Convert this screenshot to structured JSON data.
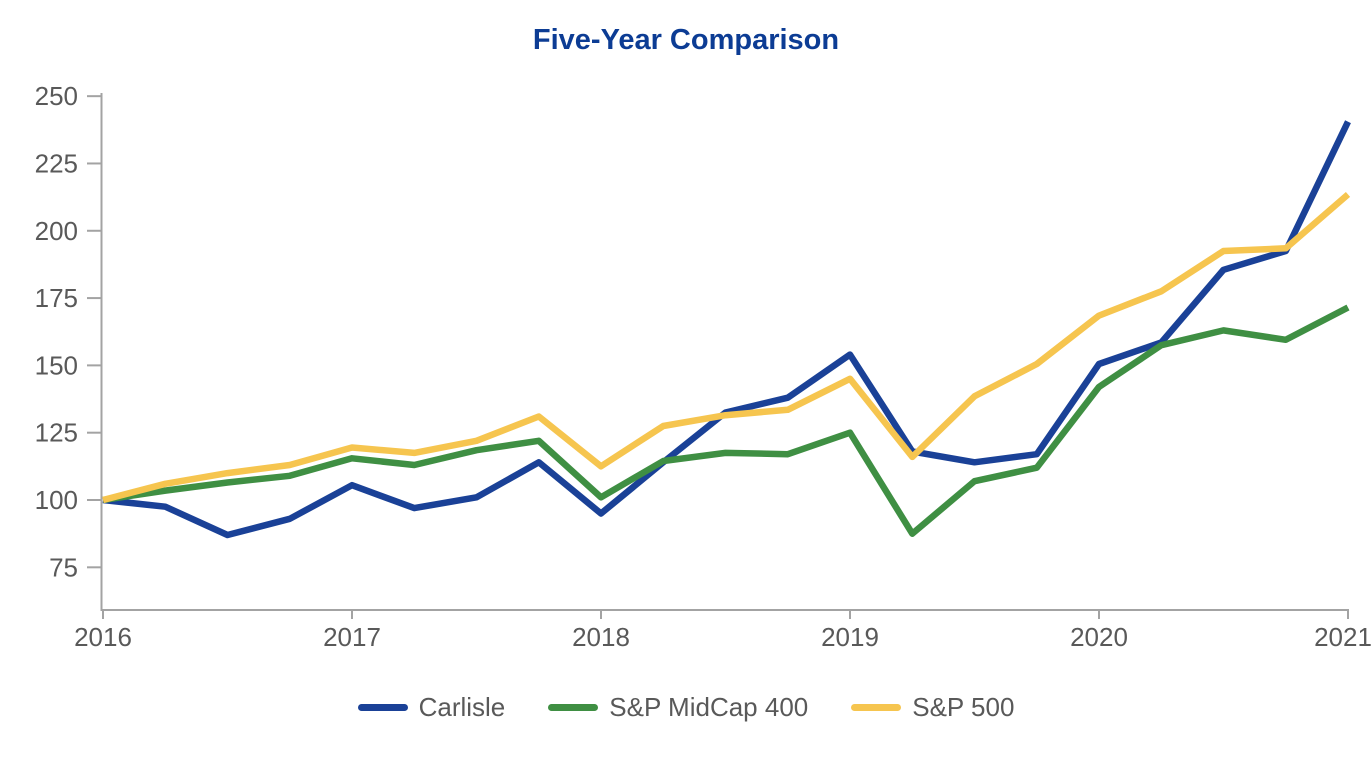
{
  "chart_data": {
    "type": "line",
    "title": "Five-Year Comparison",
    "index_base": 100,
    "x_tick_labels": [
      "2016",
      "2017",
      "2018",
      "2019",
      "2020",
      "2021"
    ],
    "points_per_year": 4,
    "y_ticks": [
      75,
      100,
      125,
      150,
      175,
      200,
      225,
      250
    ],
    "ylim": [
      59,
      250
    ],
    "grid": false,
    "legend_position": "bottom",
    "series": [
      {
        "name": "Carlisle",
        "color": "#1a4197",
        "values": [
          100,
          97.5,
          87,
          93,
          105.5,
          97,
          101,
          114,
          95,
          114,
          132.5,
          138,
          154,
          118,
          114,
          117,
          150.5,
          158.5,
          185.5,
          192.5,
          240.5
        ]
      },
      {
        "name": "S&P MidCap 400",
        "color": "#3f8f43",
        "values": [
          100,
          103.5,
          106.5,
          109,
          115.5,
          113,
          118.5,
          122,
          101,
          114.5,
          117.5,
          117,
          125,
          87.5,
          107,
          112,
          142,
          157.5,
          163,
          159.5,
          171.5
        ]
      },
      {
        "name": "S&P 500",
        "color": "#f6c54f",
        "values": [
          100,
          106,
          110,
          113,
          119.5,
          117.5,
          122,
          131,
          112.5,
          127.5,
          131.5,
          133.5,
          145,
          116,
          138.5,
          150.5,
          168.5,
          177.5,
          192.5,
          193.5,
          213.5
        ]
      }
    ],
    "colors": {
      "title": "#0c3c94",
      "axis_line": "#a3a3a3",
      "tick_label": "#595959",
      "legend_label": "#595959",
      "background": "#ffffff"
    }
  }
}
